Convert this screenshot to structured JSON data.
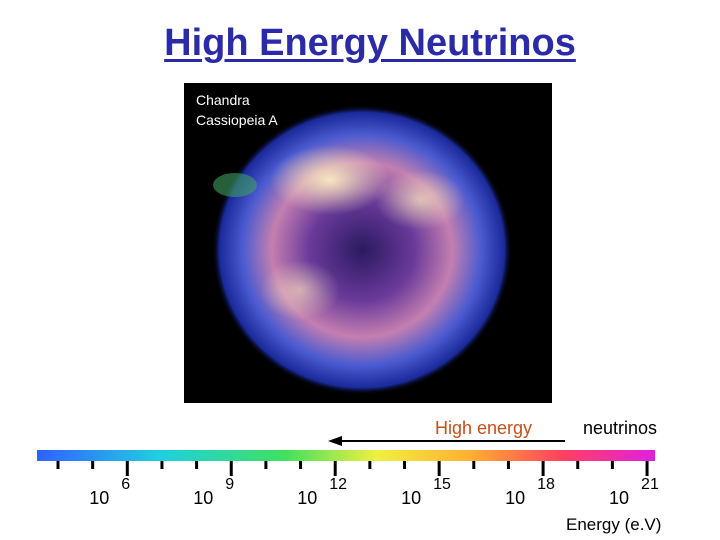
{
  "title": "High Energy Neutrinos",
  "image": {
    "caption": [
      "Chandra",
      "Cassiopeia A"
    ]
  },
  "annotation": {
    "left": "High energy",
    "right": "neutrinos"
  },
  "scale": {
    "ticks": [
      {
        "base": "10",
        "exponent": "6"
      },
      {
        "base": "10",
        "exponent": "9"
      },
      {
        "base": "10",
        "exponent": "12"
      },
      {
        "base": "10",
        "exponent": "15"
      },
      {
        "base": "10",
        "exponent": "18"
      },
      {
        "base": "10",
        "exponent": "21"
      }
    ],
    "axis_label": "Energy (e.V)"
  }
}
